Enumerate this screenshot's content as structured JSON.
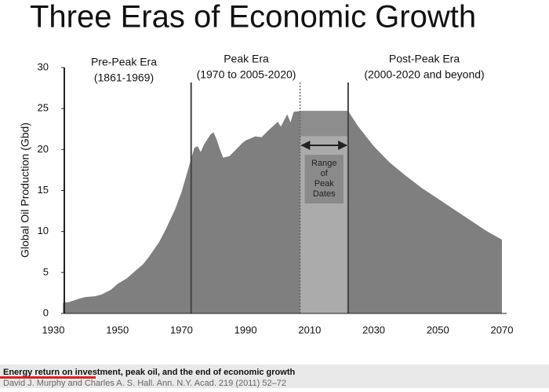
{
  "chart_data": {
    "type": "area",
    "title": "Three Eras of Economic Growth",
    "y_label": "Global Oil Production (Gbd)",
    "x": [
      1933,
      1935,
      1938,
      1940,
      1943,
      1945,
      1948,
      1950,
      1953,
      1955,
      1958,
      1960,
      1963,
      1965,
      1968,
      1970,
      1972,
      1974,
      1975,
      1976,
      1977,
      1979,
      1980,
      1981,
      1982,
      1983,
      1985,
      1987,
      1989,
      1990,
      1993,
      1995,
      1997,
      1999,
      2000,
      2001,
      2003,
      2004,
      2005,
      2007,
      2010,
      2015,
      2020,
      2022,
      2025,
      2030,
      2035,
      2040,
      2045,
      2050,
      2055,
      2060,
      2065,
      2070
    ],
    "values": [
      1.3,
      1.4,
      1.8,
      2.0,
      2.1,
      2.3,
      2.9,
      3.6,
      4.3,
      5.0,
      6.0,
      7.0,
      8.7,
      10.2,
      12.7,
      14.8,
      17.5,
      20.2,
      20.4,
      19.7,
      20.6,
      21.8,
      22.1,
      21.2,
      20.0,
      19.0,
      19.2,
      20.0,
      20.8,
      21.1,
      21.6,
      21.5,
      22.3,
      23.0,
      23.4,
      22.8,
      24.3,
      23.3,
      24.6,
      24.7,
      24.7,
      24.7,
      24.7,
      24.7,
      22.9,
      20.4,
      18.4,
      16.8,
      15.3,
      14.0,
      12.7,
      11.4,
      10.1,
      9.0
    ],
    "color": "#7f7f7f",
    "xlim": [
      1930,
      2070
    ],
    "ylim": [
      0,
      30
    ],
    "xticks": [
      1930,
      1950,
      1970,
      1990,
      2010,
      2030,
      2050,
      2070
    ],
    "yticks": [
      0,
      5,
      10,
      15,
      20,
      25,
      30
    ],
    "vlines": [
      1973,
      2007,
      2022
    ],
    "range_label": [
      "Range",
      "of",
      "Peak",
      "Dates"
    ],
    "eras": [
      {
        "name": "Pre-Peak Era",
        "dates": "(1861-1969)"
      },
      {
        "name": "Peak Era",
        "dates": "(1970 to 2005-2020)"
      },
      {
        "name": "Post-Peak Era",
        "dates": "(2000-2020 and beyond)"
      }
    ]
  },
  "footer": {
    "title": "Energy return on investment, peak oil, and the end of economic growth",
    "citation": "David J. Murphy and Charles A. S. Hall. Ann. N.Y. Acad. 219 (2011) 52–72"
  }
}
